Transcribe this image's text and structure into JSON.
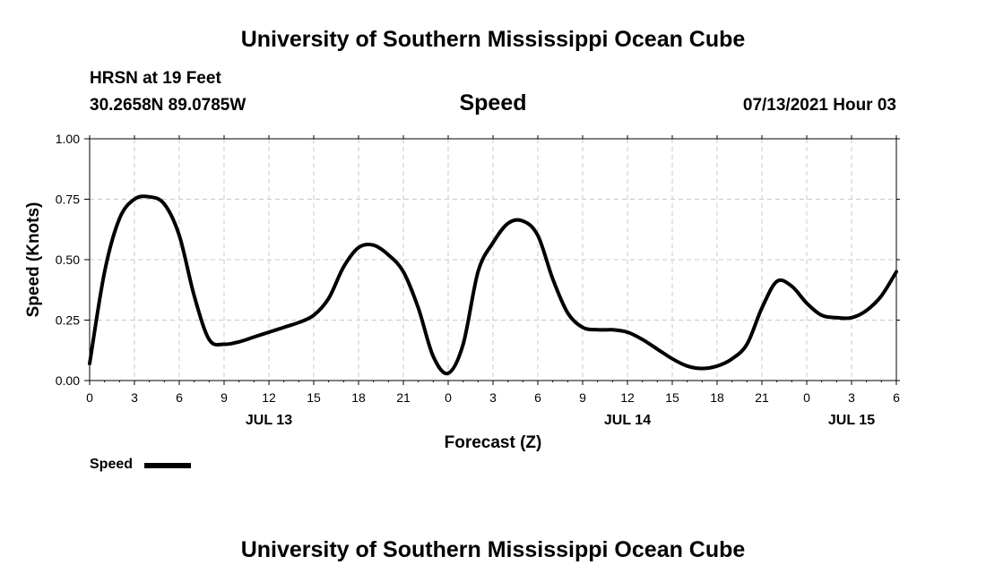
{
  "header": {
    "title": "University of Southern Mississippi Ocean Cube",
    "station": "HRSN at 19 Feet",
    "coordinates": "30.2658N  89.0785W",
    "variable": "Speed",
    "datetime": "07/13/2021 Hour 03"
  },
  "footer": {
    "title": "University of Southern Mississippi Ocean Cube"
  },
  "legend": {
    "label": "Speed",
    "color": "#000000"
  },
  "chart_data": {
    "type": "line",
    "title": "Speed",
    "xlabel": "Forecast (Z)",
    "ylabel": "Speed (Knots)",
    "xlim": [
      0,
      54
    ],
    "ylim": [
      0,
      1.0
    ],
    "grid": true,
    "x_ticks": [
      0,
      3,
      6,
      9,
      12,
      15,
      18,
      21,
      24,
      27,
      30,
      33,
      36,
      39,
      42,
      45,
      48,
      51,
      54
    ],
    "x_tick_labels": [
      "0",
      "3",
      "6",
      "9",
      "12",
      "15",
      "18",
      "21",
      "0",
      "3",
      "6",
      "9",
      "12",
      "15",
      "18",
      "21",
      "0",
      "3",
      "6"
    ],
    "y_ticks": [
      0,
      0.25,
      0.5,
      0.75,
      1.0
    ],
    "y_tick_labels": [
      "0.00",
      "0.25",
      "0.50",
      "0.75",
      "1.00"
    ],
    "date_labels": [
      {
        "x": 12,
        "label": "JUL 13"
      },
      {
        "x": 36,
        "label": "JUL 14"
      },
      {
        "x": 51,
        "label": "JUL 15"
      }
    ],
    "series": [
      {
        "name": "Speed",
        "x": [
          0,
          1,
          2,
          3,
          4,
          5,
          6,
          7,
          8,
          9,
          10,
          11,
          12,
          13,
          14,
          15,
          16,
          17,
          18,
          19,
          20,
          21,
          22,
          23,
          24,
          25,
          26,
          27,
          28,
          29,
          30,
          31,
          32,
          33,
          34,
          35,
          36,
          37,
          38,
          39,
          40,
          41,
          42,
          43,
          44,
          45,
          46,
          47,
          48,
          49,
          50,
          51,
          52,
          53,
          54
        ],
        "values": [
          0.07,
          0.45,
          0.67,
          0.75,
          0.76,
          0.73,
          0.6,
          0.35,
          0.17,
          0.15,
          0.16,
          0.18,
          0.2,
          0.22,
          0.24,
          0.27,
          0.34,
          0.47,
          0.55,
          0.56,
          0.52,
          0.45,
          0.3,
          0.1,
          0.03,
          0.15,
          0.45,
          0.57,
          0.65,
          0.66,
          0.6,
          0.42,
          0.28,
          0.22,
          0.21,
          0.21,
          0.2,
          0.17,
          0.13,
          0.09,
          0.06,
          0.05,
          0.06,
          0.09,
          0.15,
          0.3,
          0.41,
          0.39,
          0.32,
          0.27,
          0.26,
          0.26,
          0.29,
          0.35,
          0.45
        ]
      }
    ]
  }
}
